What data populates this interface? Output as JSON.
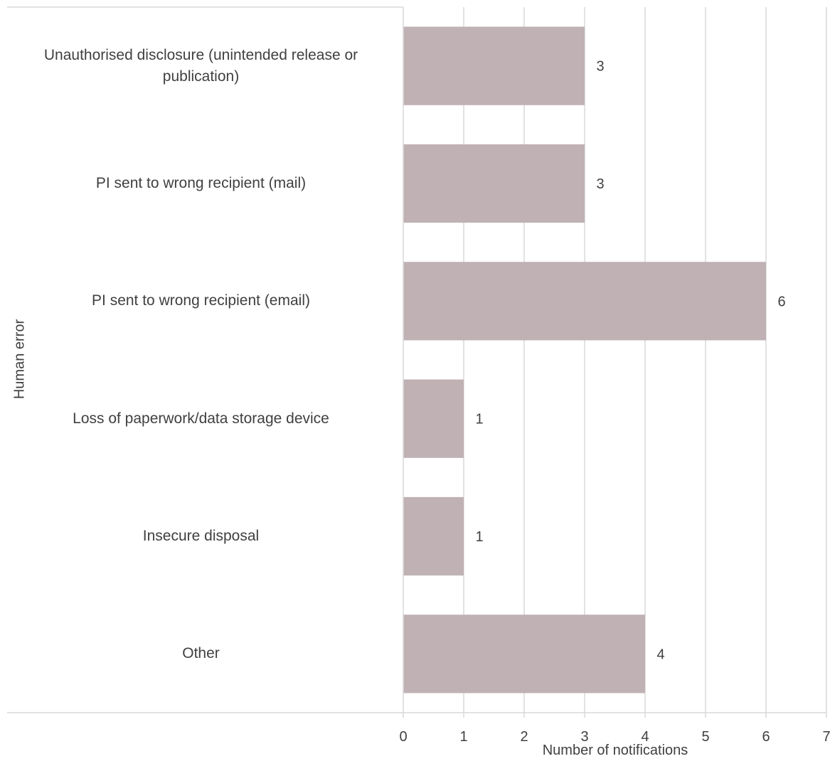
{
  "chart_data": {
    "type": "bar",
    "orientation": "horizontal",
    "categories": [
      "Unauthorised disclosure (unintended release or publication)",
      "PI sent to wrong recipient (mail)",
      "PI sent to wrong recipient (email)",
      "Loss of paperwork/data storage device",
      "Insecure disposal",
      "Other"
    ],
    "values": [
      3,
      3,
      6,
      1,
      1,
      4
    ],
    "data_labels": [
      "3",
      "3",
      "6",
      "1",
      "1",
      "4"
    ],
    "xlabel": "Number of notifications",
    "ylabel": "Human error",
    "xlim": [
      0,
      7
    ],
    "xticks": [
      "0",
      "1",
      "2",
      "3",
      "4",
      "5",
      "6",
      "7"
    ],
    "grid": "vertical",
    "legend": "none",
    "bar_color": "#c0b1b4",
    "grid_color": "#d9d9d9",
    "text_color": "#404040"
  }
}
